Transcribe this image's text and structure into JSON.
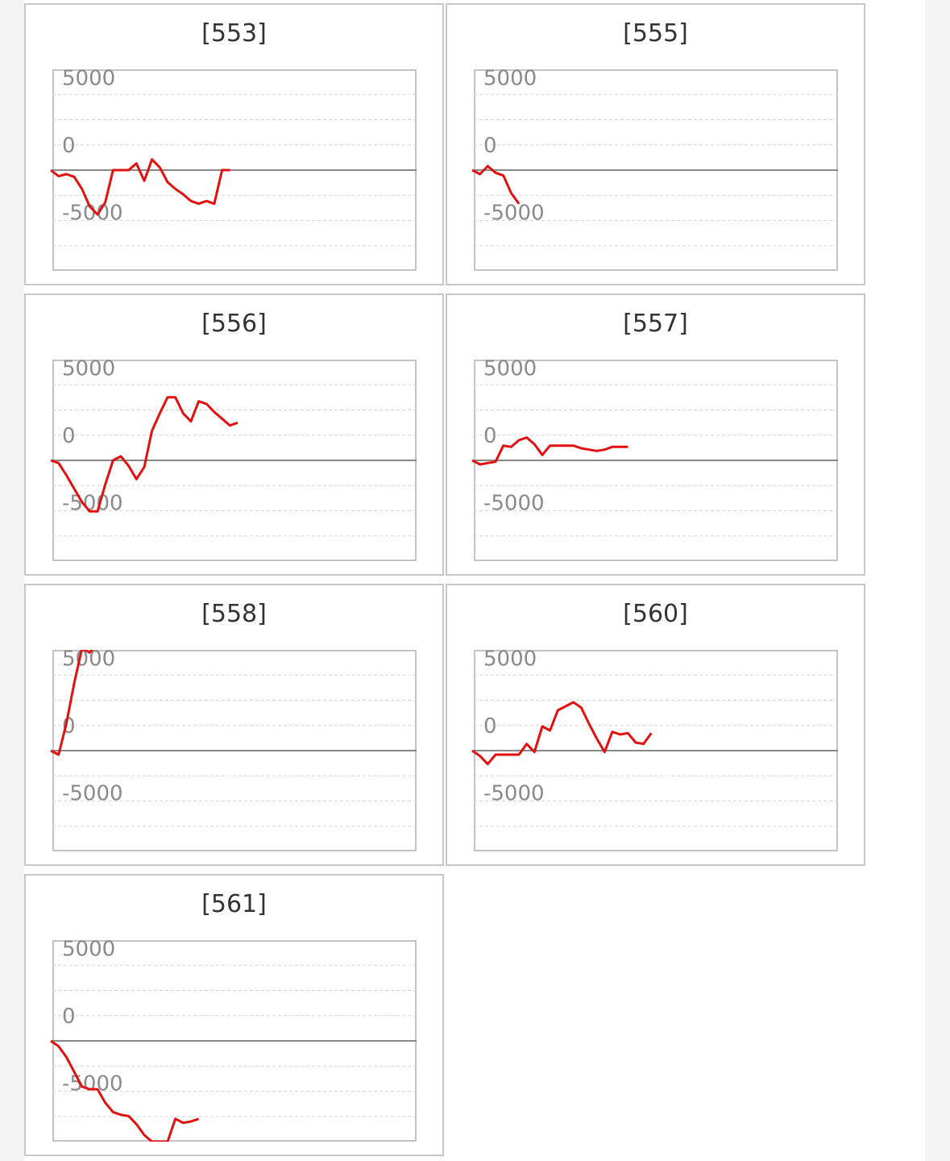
{
  "colors": {
    "line": "#e31010",
    "zero_line": "#888888",
    "grid": "#d6d6d6",
    "frame": "#c4c4c4"
  },
  "chart_data": [
    {
      "type": "line",
      "title": "[553]",
      "ylim": [
        -7500,
        7500
      ],
      "grid": true,
      "yticks": [
        {
          "value": 5000,
          "label": "5000"
        },
        {
          "value": 0,
          "label": "0"
        },
        {
          "value": -5000,
          "label": "-5000"
        }
      ],
      "x": [
        0,
        1,
        2,
        3,
        4,
        5,
        6,
        7,
        8,
        9,
        10,
        11,
        12,
        13,
        14,
        15,
        16,
        17,
        18,
        19,
        20,
        21,
        22,
        23
      ],
      "values": [
        0,
        -450,
        -300,
        -500,
        -1400,
        -2700,
        -3300,
        -2400,
        0,
        0,
        0,
        500,
        -800,
        800,
        200,
        -900,
        -1400,
        -1800,
        -2300,
        -2500,
        -2300,
        -2500,
        0,
        0
      ]
    },
    {
      "type": "line",
      "title": "[555]",
      "ylim": [
        -7500,
        7500
      ],
      "grid": true,
      "yticks": [
        {
          "value": 5000,
          "label": "5000"
        },
        {
          "value": 0,
          "label": "0"
        },
        {
          "value": -5000,
          "label": "-5000"
        }
      ],
      "x": [
        0,
        1,
        2,
        3,
        4,
        5,
        6
      ],
      "values": [
        0,
        -300,
        300,
        -200,
        -400,
        -1700,
        -2500
      ]
    },
    {
      "type": "line",
      "title": "[556]",
      "ylim": [
        -7500,
        7500
      ],
      "grid": true,
      "yticks": [
        {
          "value": 5000,
          "label": "5000"
        },
        {
          "value": 0,
          "label": "0"
        },
        {
          "value": -5000,
          "label": "-5000"
        }
      ],
      "x": [
        0,
        1,
        2,
        3,
        4,
        5,
        6,
        7,
        8,
        9,
        10,
        11,
        12,
        13,
        14,
        15,
        16,
        17,
        18,
        19,
        20,
        21,
        22,
        23,
        24
      ],
      "values": [
        0,
        -200,
        -1100,
        -2100,
        -3100,
        -3800,
        -3800,
        -1800,
        0,
        300,
        -400,
        -1400,
        -500,
        2200,
        3500,
        4700,
        4700,
        3500,
        2900,
        4400,
        4200,
        3600,
        3100,
        2600,
        2800
      ]
    },
    {
      "type": "line",
      "title": "[557]",
      "ylim": [
        -7500,
        7500
      ],
      "grid": true,
      "yticks": [
        {
          "value": 5000,
          "label": "5000"
        },
        {
          "value": 0,
          "label": "0"
        },
        {
          "value": -5000,
          "label": "-5000"
        }
      ],
      "x": [
        0,
        1,
        2,
        3,
        4,
        5,
        6,
        7,
        8,
        9,
        10,
        11,
        12,
        13,
        14,
        15,
        16,
        17,
        18,
        19,
        20
      ],
      "values": [
        0,
        -300,
        -200,
        -100,
        1100,
        1000,
        1500,
        1700,
        1200,
        400,
        1100,
        1100,
        1100,
        1100,
        900,
        800,
        700,
        800,
        1000,
        1000,
        1000
      ]
    },
    {
      "type": "line",
      "title": "[558]",
      "ylim": [
        -7500,
        7500
      ],
      "grid": true,
      "yticks": [
        {
          "value": 5000,
          "label": "5000"
        },
        {
          "value": 0,
          "label": "0"
        },
        {
          "value": -5000,
          "label": "-5000"
        }
      ],
      "x": [
        0,
        1,
        2,
        3,
        4,
        5,
        6,
        7,
        8,
        9,
        10,
        11,
        12,
        13,
        14,
        15,
        16,
        17,
        18,
        19,
        20,
        21,
        22
      ],
      "values": [
        0,
        -300,
        2000,
        5000,
        7600,
        7300,
        8000,
        8000,
        8000,
        8000,
        8000,
        8000,
        8000,
        8000,
        8000,
        8000,
        8000,
        8000,
        8000,
        8000,
        8000,
        8000,
        8000
      ]
    },
    {
      "type": "line",
      "title": "[560]",
      "ylim": [
        -7500,
        7500
      ],
      "grid": true,
      "yticks": [
        {
          "value": 5000,
          "label": "5000"
        },
        {
          "value": 0,
          "label": "0"
        },
        {
          "value": -5000,
          "label": "-5000"
        }
      ],
      "x": [
        0,
        1,
        2,
        3,
        4,
        5,
        6,
        7,
        8,
        9,
        10,
        11,
        12,
        13,
        14,
        15,
        16,
        17,
        18,
        19,
        20,
        21,
        22,
        23
      ],
      "values": [
        0,
        -400,
        -1000,
        -300,
        -300,
        -300,
        -300,
        500,
        -100,
        1800,
        1500,
        3000,
        3300,
        3600,
        3200,
        2000,
        900,
        -100,
        1400,
        1200,
        1300,
        600,
        500,
        1300
      ]
    },
    {
      "type": "line",
      "title": "[561]",
      "ylim": [
        -7500,
        7500
      ],
      "grid": true,
      "yticks": [
        {
          "value": 5000,
          "label": "5000"
        },
        {
          "value": 0,
          "label": "0"
        },
        {
          "value": -5000,
          "label": "-5000"
        }
      ],
      "x": [
        0,
        1,
        2,
        3,
        4,
        5,
        6,
        7,
        8,
        9,
        10,
        11,
        12,
        13,
        14,
        15,
        16,
        17,
        18,
        19
      ],
      "values": [
        0,
        -400,
        -1200,
        -2300,
        -3400,
        -3600,
        -3600,
        -4600,
        -5300,
        -5500,
        -5600,
        -6200,
        -7000,
        -7500,
        -7500,
        -7500,
        -5800,
        -6100,
        -6000,
        -5800
      ]
    }
  ]
}
